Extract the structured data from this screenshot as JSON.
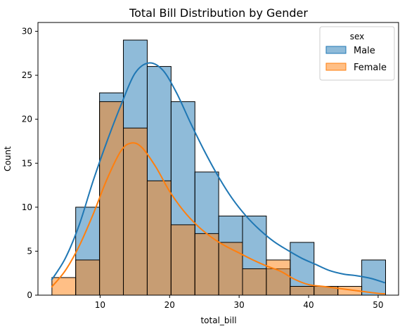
{
  "chart_data": {
    "type": "histogram",
    "title": "Total Bill Distribution by Gender",
    "xlabel": "total_bill",
    "ylabel": "Count",
    "xlim": [
      1.06,
      52.94
    ],
    "ylim": [
      0,
      31
    ],
    "xticks": [
      10,
      20,
      30,
      40,
      50
    ],
    "yticks": [
      0,
      5,
      10,
      15,
      20,
      25,
      30
    ],
    "bin_edges": [
      3.07,
      6.49,
      9.92,
      13.35,
      16.78,
      20.21,
      23.64,
      27.06,
      30.49,
      33.92,
      37.35,
      40.78,
      44.21,
      47.64,
      51.07
    ],
    "grid": false,
    "legend": {
      "title": "sex",
      "position": "top-right"
    },
    "series": [
      {
        "name": "Male",
        "color": "#1f77b4",
        "counts": [
          0,
          10,
          23,
          29,
          26,
          22,
          14,
          9,
          9,
          3,
          6,
          1,
          0,
          4
        ],
        "kde": [
          [
            3,
            1.7
          ],
          [
            5,
            4.2
          ],
          [
            7,
            8
          ],
          [
            9,
            13
          ],
          [
            11,
            17.5
          ],
          [
            13,
            21.6
          ],
          [
            15,
            25.2
          ],
          [
            17,
            26.4
          ],
          [
            19,
            25.6
          ],
          [
            21,
            23
          ],
          [
            23,
            19.6
          ],
          [
            25,
            16.4
          ],
          [
            27,
            13.5
          ],
          [
            29,
            11
          ],
          [
            31,
            9
          ],
          [
            33,
            7.4
          ],
          [
            35,
            6.1
          ],
          [
            37,
            5.1
          ],
          [
            39,
            4.2
          ],
          [
            41,
            3.5
          ],
          [
            43,
            2.8
          ],
          [
            45,
            2.4
          ],
          [
            47,
            2.2
          ],
          [
            49,
            1.9
          ],
          [
            51,
            1.4
          ]
        ]
      },
      {
        "name": "Female",
        "color": "#ff7f0e",
        "counts": [
          2,
          4,
          22,
          19,
          13,
          8,
          7,
          6,
          3,
          4,
          1,
          1,
          1,
          0
        ],
        "kde": [
          [
            3,
            0.9
          ],
          [
            5,
            2.8
          ],
          [
            7,
            5.6
          ],
          [
            9,
            9.2
          ],
          [
            11,
            13.2
          ],
          [
            13,
            16.4
          ],
          [
            14.5,
            17.3
          ],
          [
            16,
            16.8
          ],
          [
            18,
            14.6
          ],
          [
            20,
            11.8
          ],
          [
            22,
            9.6
          ],
          [
            24,
            7.9
          ],
          [
            26,
            6.6
          ],
          [
            28,
            5.6
          ],
          [
            30,
            4.8
          ],
          [
            32,
            4
          ],
          [
            34,
            3.3
          ],
          [
            36,
            2.7
          ],
          [
            38,
            1.8
          ],
          [
            40,
            1.2
          ],
          [
            42,
            1
          ],
          [
            44,
            0.8
          ],
          [
            46,
            0.6
          ],
          [
            48,
            0.4
          ],
          [
            50,
            0.2
          ],
          [
            51,
            0.15
          ]
        ]
      }
    ]
  }
}
